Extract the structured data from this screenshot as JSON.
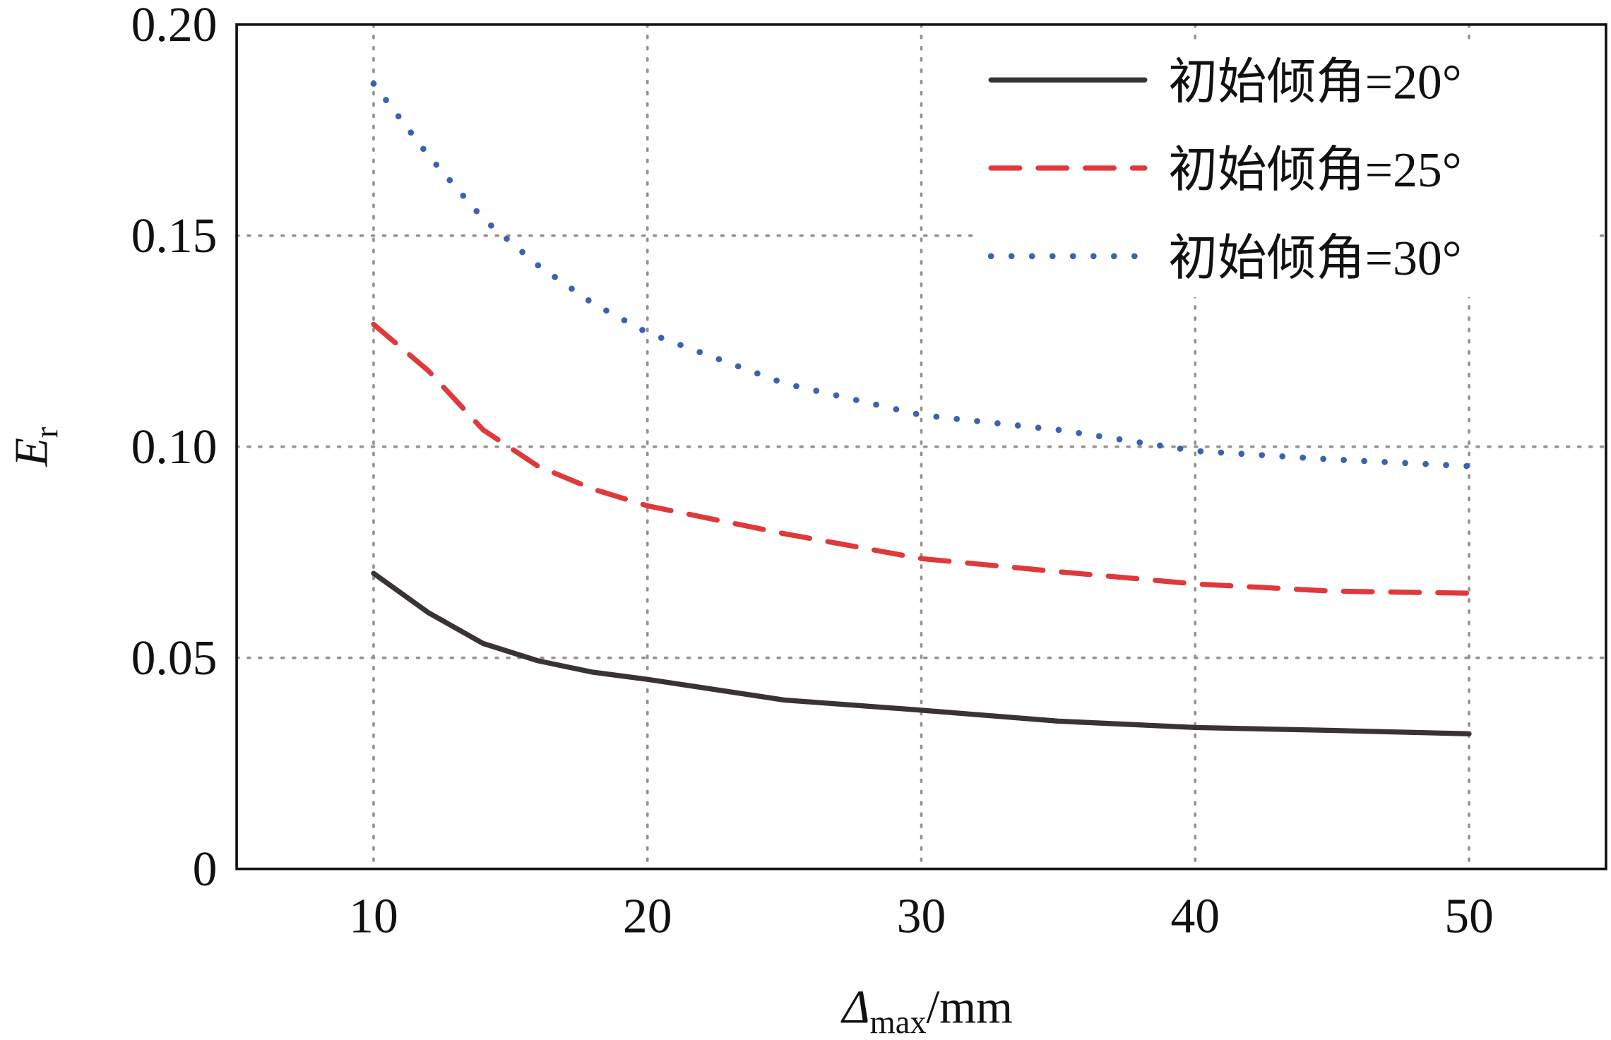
{
  "chart_data": {
    "type": "line",
    "title": "",
    "xlabel": {
      "main": "Δ",
      "sub": "max",
      "unit": "/mm"
    },
    "ylabel": {
      "main": "E",
      "sub": "r"
    },
    "xlim": [
      5,
      55
    ],
    "ylim": [
      0,
      0.2
    ],
    "xticks": [
      10,
      20,
      30,
      40,
      50
    ],
    "xtick_labels": [
      "10",
      "20",
      "30",
      "40",
      "50"
    ],
    "yticks": [
      0,
      0.05,
      0.1,
      0.15,
      0.2
    ],
    "ytick_labels": [
      "0",
      "0.05",
      "0.10",
      "0.15",
      "0.20"
    ],
    "grid": true,
    "legend_position": "top-right",
    "x": [
      10,
      12,
      14,
      16,
      18,
      20,
      25,
      30,
      35,
      40,
      45,
      50
    ],
    "series": [
      {
        "name": "初始倾角=20°",
        "color": "#3a3333",
        "style": "solid",
        "values": [
          0.07,
          0.0607,
          0.0534,
          0.0493,
          0.0466,
          0.0449,
          0.04,
          0.0376,
          0.035,
          0.0335,
          0.0328,
          0.032
        ]
      },
      {
        "name": "初始倾角=25°",
        "color": "#e0383b",
        "style": "dashed",
        "values": [
          0.129,
          0.118,
          0.104,
          0.0954,
          0.09,
          0.086,
          0.0794,
          0.0735,
          0.0704,
          0.0675,
          0.0658,
          0.0653
        ]
      },
      {
        "name": "初始倾角=30°",
        "color": "#3a62b0",
        "style": "dotted",
        "values": [
          0.186,
          0.169,
          0.154,
          0.143,
          0.134,
          0.127,
          0.115,
          0.1075,
          0.104,
          0.099,
          0.097,
          0.0954
        ]
      }
    ]
  }
}
